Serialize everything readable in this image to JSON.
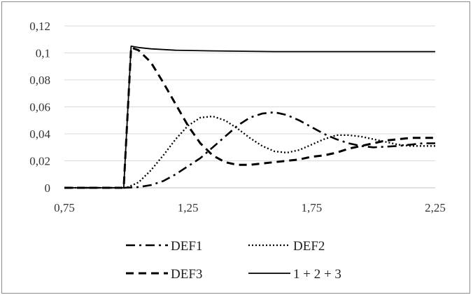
{
  "chart_data": {
    "type": "line",
    "title": "",
    "xlabel": "",
    "ylabel": "",
    "xlim": [
      0.75,
      2.25
    ],
    "ylim": [
      0,
      0.12
    ],
    "x_ticks": [
      "0,75",
      "1,25",
      "1,75",
      "2,25"
    ],
    "y_ticks": [
      "0",
      "0,02",
      "0,04",
      "0,06",
      "0,08",
      "0,1",
      "0,12"
    ],
    "grid": true,
    "legend_position": "bottom",
    "series": [
      {
        "name": "DEF1",
        "dash": "dash-dot",
        "x": [
          0.75,
          0.99,
          1.05,
          1.1,
          1.15,
          1.2,
          1.25,
          1.3,
          1.35,
          1.4,
          1.45,
          1.5,
          1.55,
          1.6,
          1.65,
          1.7,
          1.75,
          1.8,
          1.85,
          1.9,
          1.95,
          2.0,
          2.05,
          2.1,
          2.15,
          2.2,
          2.25
        ],
        "y": [
          0,
          0,
          0.0005,
          0.002,
          0.005,
          0.01,
          0.016,
          0.022,
          0.03,
          0.038,
          0.046,
          0.052,
          0.055,
          0.056,
          0.054,
          0.05,
          0.045,
          0.04,
          0.036,
          0.033,
          0.031,
          0.03,
          0.0305,
          0.031,
          0.032,
          0.033,
          0.033
        ]
      },
      {
        "name": "DEF2",
        "dash": "dotted",
        "x": [
          0.75,
          1.0,
          1.05,
          1.1,
          1.15,
          1.2,
          1.25,
          1.3,
          1.35,
          1.4,
          1.45,
          1.5,
          1.55,
          1.6,
          1.65,
          1.7,
          1.75,
          1.8,
          1.85,
          1.9,
          1.95,
          2.0,
          2.05,
          2.1,
          2.15,
          2.2,
          2.25
        ],
        "y": [
          0,
          0,
          0.004,
          0.013,
          0.024,
          0.036,
          0.046,
          0.052,
          0.053,
          0.05,
          0.044,
          0.037,
          0.031,
          0.027,
          0.026,
          0.028,
          0.032,
          0.036,
          0.039,
          0.039,
          0.038,
          0.036,
          0.034,
          0.032,
          0.031,
          0.031,
          0.031
        ]
      },
      {
        "name": "DEF3",
        "dash": "dashed",
        "x": [
          0.75,
          0.99,
          1.02,
          1.05,
          1.1,
          1.15,
          1.2,
          1.25,
          1.3,
          1.35,
          1.4,
          1.45,
          1.5,
          1.55,
          1.6,
          1.65,
          1.7,
          1.75,
          1.8,
          1.85,
          1.9,
          1.95,
          2.0,
          2.05,
          2.1,
          2.15,
          2.2,
          2.25
        ],
        "y": [
          0,
          0,
          0.104,
          0.102,
          0.093,
          0.078,
          0.062,
          0.046,
          0.033,
          0.024,
          0.019,
          0.017,
          0.017,
          0.018,
          0.019,
          0.02,
          0.021,
          0.023,
          0.024,
          0.026,
          0.029,
          0.031,
          0.033,
          0.035,
          0.036,
          0.037,
          0.037,
          0.037
        ]
      },
      {
        "name": "1 + 2 + 3",
        "dash": "solid",
        "x": [
          0.75,
          0.99,
          1.02,
          1.05,
          1.1,
          1.2,
          1.35,
          1.6,
          1.8,
          2.0,
          2.25
        ],
        "y": [
          0,
          0,
          0.105,
          0.104,
          0.103,
          0.102,
          0.1015,
          0.101,
          0.101,
          0.101,
          0.101
        ]
      }
    ]
  }
}
